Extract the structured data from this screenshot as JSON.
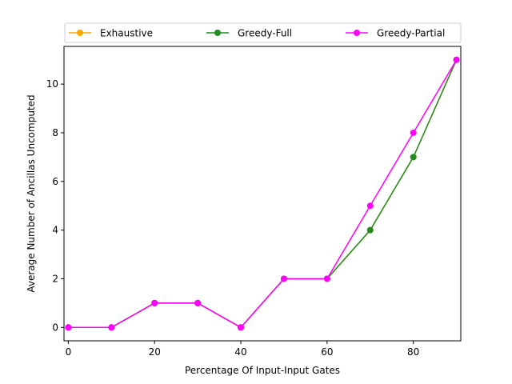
{
  "chart_data": {
    "type": "line",
    "title": "",
    "xlabel": "Percentage Of Input-Input Gates",
    "ylabel": "Average Number of Ancillas Uncomputed",
    "x": [
      0,
      10,
      20,
      30,
      40,
      50,
      60,
      70,
      80,
      90
    ],
    "xlim": [
      -1,
      91
    ],
    "ylim": [
      -0.55,
      11.55
    ],
    "xticks": [
      0,
      20,
      40,
      60,
      80
    ],
    "yticks": [
      0,
      2,
      4,
      6,
      8,
      10
    ],
    "grid": false,
    "legend_position": "top",
    "series": [
      {
        "name": "Exhaustive",
        "color": "#ffa500",
        "values": [
          0,
          0,
          1,
          1,
          0,
          2,
          2,
          4,
          7,
          11
        ]
      },
      {
        "name": "Greedy-Full",
        "color": "#228b22",
        "values": [
          0,
          0,
          1,
          1,
          0,
          2,
          2,
          4,
          7,
          11
        ]
      },
      {
        "name": "Greedy-Partial",
        "color": "#ff00ff",
        "values": [
          0,
          0,
          1,
          1,
          0,
          2,
          2,
          5,
          8,
          11
        ]
      }
    ]
  }
}
